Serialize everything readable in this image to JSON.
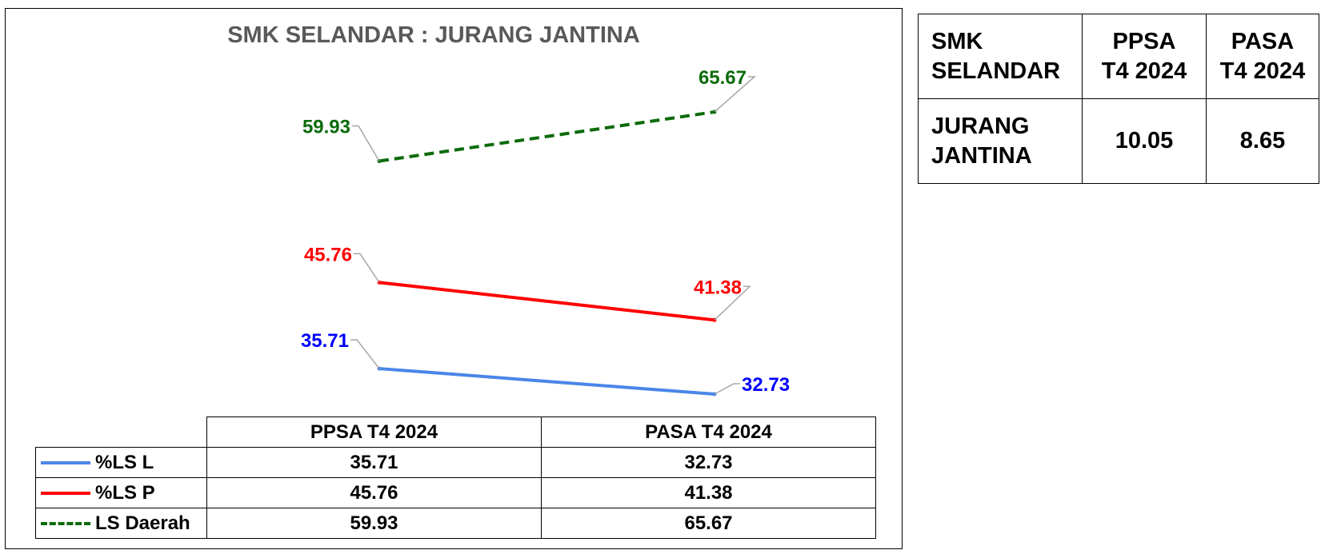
{
  "chart_data": {
    "type": "line",
    "title": "SMK SELANDAR : JURANG JANTINA",
    "categories": [
      "PPSA T4 2024",
      "PASA T4 2024"
    ],
    "series": [
      {
        "name": "%LS L",
        "values": [
          35.71,
          32.73
        ],
        "color": "#4a86e8",
        "dash": "solid",
        "label_color": "#0000ff"
      },
      {
        "name": "%LS P",
        "values": [
          45.76,
          41.38
        ],
        "color": "#ff0000",
        "dash": "solid",
        "label_color": "#ff0000"
      },
      {
        "name": "LS Daerah",
        "values": [
          59.93,
          65.67
        ],
        "color": "#0b6b0b",
        "dash": "dashed",
        "label_color": "#0b6b0b"
      }
    ],
    "table": {
      "header": [
        "PPSA T4 2024",
        "PASA T4 2024"
      ],
      "rows": [
        {
          "label": "%LS L",
          "values": [
            "35.71",
            "32.73"
          ]
        },
        {
          "label": "%LS P",
          "values": [
            "45.76",
            "41.38"
          ]
        },
        {
          "label": "LS Daerah",
          "values": [
            "59.93",
            "65.67"
          ]
        }
      ]
    }
  },
  "summary": {
    "corner_line1": "SMK",
    "corner_line2": "SELANDAR",
    "col1_line1": "PPSA",
    "col1_line2": "T4 2024",
    "col2_line1": "PASA",
    "col2_line2": "T4 2024",
    "row_label_line1": "JURANG",
    "row_label_line2": "JANTINA",
    "values": [
      "10.05",
      "8.65"
    ]
  }
}
